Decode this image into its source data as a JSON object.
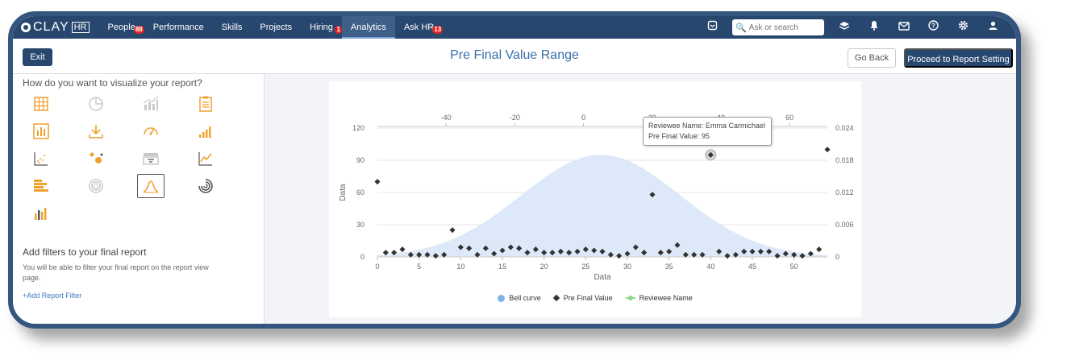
{
  "brand": {
    "name": "CLAY",
    "suffix": "HR"
  },
  "nav": [
    {
      "label": "People",
      "badge": "88"
    },
    {
      "label": "Performance",
      "badge": ""
    },
    {
      "label": "Skills",
      "badge": ""
    },
    {
      "label": "Projects",
      "badge": ""
    },
    {
      "label": "Hiring",
      "badge": "1"
    },
    {
      "label": "Analytics",
      "badge": "",
      "active": true
    },
    {
      "label": "Ask HR",
      "badge": "13"
    }
  ],
  "search": {
    "placeholder": "Ask or search"
  },
  "toolbar_icons": [
    "inbox-icon",
    "layers-icon",
    "bell-icon",
    "mail-icon",
    "help-icon",
    "settings-icon",
    "user-icon"
  ],
  "header": {
    "exit_label": "Exit",
    "title": "Pre Final Value Range",
    "goback_label": "Go Back",
    "proceed_label": "Proceed to Report Setting"
  },
  "left": {
    "viz_question": "How do you want to visualize your report?",
    "chart_types": [
      "table",
      "pie",
      "column-line",
      "report",
      "bar",
      "download",
      "gauge",
      "column-asc",
      "scatter",
      "bubble",
      "funnel",
      "line",
      "horizontal-bar",
      "donut",
      "bell-curve",
      "radial",
      "mixed-column"
    ],
    "selected_chart": "bell-curve",
    "filters_title": "Add filters to your final report",
    "filters_desc": "You will be able to filter your final report on the report view page.",
    "add_filter_label": "+Add Report Filter"
  },
  "tooltip": {
    "line1": "Reviewee Name: Emma Carmichael",
    "line2": "Pre Final Value: 95"
  },
  "chart_data": {
    "type": "scatter",
    "title": "",
    "xlabel": "Data",
    "ylabel": "Data",
    "xlim": [
      0,
      54
    ],
    "ylim": [
      0,
      120
    ],
    "x_ticks": [
      0,
      5,
      10,
      15,
      20,
      25,
      30,
      35,
      40,
      45,
      50
    ],
    "y_ticks": [
      0,
      30,
      60,
      90,
      120
    ],
    "top_axis": {
      "ticks": [
        -40,
        -20,
        0,
        20,
        40,
        60
      ],
      "lim": [
        -60,
        71
      ]
    },
    "right_axis": {
      "ticks": [
        "0",
        "0.006",
        "0.012",
        "0.018",
        "0.024"
      ],
      "lim": [
        0,
        0.024
      ]
    },
    "series": [
      {
        "name": "Bell curve",
        "type": "area",
        "mean": 26.8,
        "peak": 95,
        "sigma": 9.5,
        "color": "#dde9f8"
      },
      {
        "name": "Pre Final Value",
        "type": "scatter",
        "color": "#333333",
        "x": [
          0,
          1,
          2,
          3,
          4,
          5,
          6,
          7,
          8,
          9,
          10,
          11,
          12,
          13,
          14,
          15,
          16,
          17,
          18,
          19,
          20,
          21,
          22,
          23,
          24,
          25,
          26,
          27,
          28,
          29,
          30,
          31,
          32,
          33,
          34,
          35,
          36,
          37,
          38,
          39,
          40,
          41,
          42,
          43,
          44,
          45,
          46,
          47,
          48,
          49,
          50,
          51,
          52,
          53,
          54
        ],
        "values": [
          70,
          4,
          4,
          7,
          2,
          2,
          2,
          1,
          2,
          25,
          9,
          8,
          2,
          8,
          3,
          6,
          9,
          8,
          4,
          7,
          4,
          4,
          5,
          4,
          5,
          7,
          6,
          5,
          2,
          1,
          3,
          9,
          4,
          58,
          4,
          5,
          11,
          2,
          2,
          2,
          95,
          5,
          1,
          2,
          5,
          5,
          5,
          5,
          1,
          3,
          2,
          1,
          3,
          7,
          100
        ]
      },
      {
        "name": "Reviewee Name",
        "type": "line",
        "color": "#8fd98a"
      }
    ],
    "highlight_index": 40,
    "legend": "bottom"
  }
}
